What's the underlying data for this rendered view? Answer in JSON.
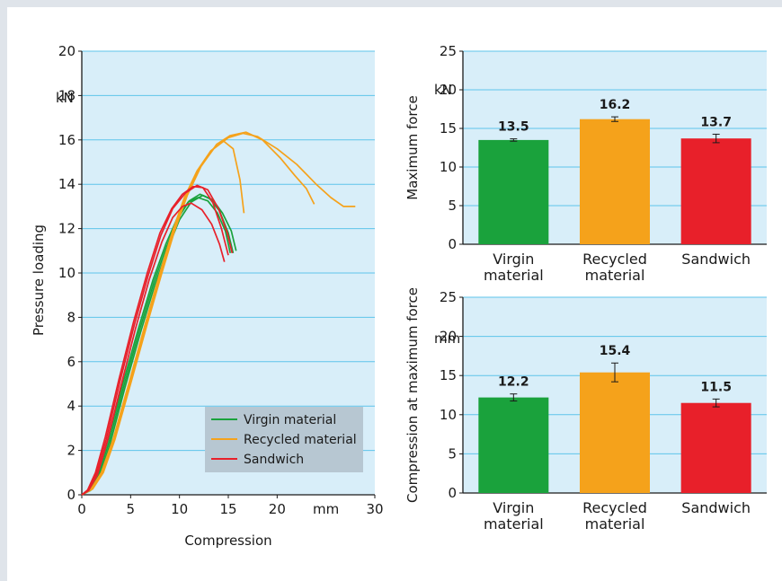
{
  "chart_data": [
    {
      "type": "line",
      "xlabel": "Compression",
      "ylabel": "Pressure loading",
      "xunit": "mm",
      "yunit": "kN",
      "xlim": [
        0,
        30
      ],
      "ylim": [
        0,
        20
      ],
      "xticks": [
        0,
        5,
        10,
        15,
        20,
        30
      ],
      "yticks": [
        0,
        2,
        4,
        6,
        8,
        10,
        12,
        14,
        16,
        18,
        20
      ],
      "grid": "horizontal",
      "legend": "bottom-right",
      "legend_entries": [
        {
          "name": "Virgin material",
          "color": "#1aa23c"
        },
        {
          "name": "Recycled material",
          "color": "#f5a21b"
        },
        {
          "name": "Sandwich",
          "color": "#e8202a"
        }
      ],
      "series": [
        {
          "group": "Virgin material",
          "color": "#1aa23c",
          "points": [
            [
              0,
              0
            ],
            [
              0.8,
              0.25
            ],
            [
              1.7,
              1.0
            ],
            [
              2.7,
              2.5
            ],
            [
              4.2,
              5.0
            ],
            [
              5.8,
              7.5
            ],
            [
              7.3,
              9.7
            ],
            [
              8.6,
              11.3
            ],
            [
              9.8,
              12.5
            ],
            [
              10.9,
              13.2
            ],
            [
              11.9,
              13.4
            ],
            [
              12.9,
              13.25
            ],
            [
              13.9,
              12.7
            ],
            [
              14.7,
              11.9
            ],
            [
              15.2,
              10.9
            ]
          ]
        },
        {
          "group": "Virgin material",
          "color": "#1aa23c",
          "points": [
            [
              0,
              0
            ],
            [
              0.8,
              0.22
            ],
            [
              1.8,
              0.95
            ],
            [
              2.8,
              2.4
            ],
            [
              4.3,
              4.9
            ],
            [
              5.9,
              7.4
            ],
            [
              7.4,
              9.6
            ],
            [
              8.7,
              11.2
            ],
            [
              9.9,
              12.5
            ],
            [
              11.0,
              13.25
            ],
            [
              12.1,
              13.55
            ],
            [
              13.1,
              13.35
            ],
            [
              14.1,
              12.8
            ],
            [
              15.0,
              11.8
            ],
            [
              15.5,
              10.9
            ]
          ]
        },
        {
          "group": "Virgin material",
          "color": "#1aa23c",
          "points": [
            [
              0,
              0
            ],
            [
              0.9,
              0.2
            ],
            [
              1.9,
              0.9
            ],
            [
              2.9,
              2.3
            ],
            [
              4.4,
              4.8
            ],
            [
              6.0,
              7.3
            ],
            [
              7.5,
              9.5
            ],
            [
              8.8,
              11.1
            ],
            [
              10.0,
              12.4
            ],
            [
              11.2,
              13.2
            ],
            [
              12.4,
              13.5
            ],
            [
              13.4,
              13.3
            ],
            [
              14.4,
              12.7
            ],
            [
              15.3,
              11.9
            ],
            [
              15.8,
              11.0
            ]
          ]
        },
        {
          "group": "Recycled material",
          "color": "#f5a21b",
          "points": [
            [
              0,
              0
            ],
            [
              1.0,
              0.3
            ],
            [
              2.0,
              1.0
            ],
            [
              3.2,
              2.5
            ],
            [
              4.8,
              5.0
            ],
            [
              6.5,
              7.7
            ],
            [
              8.0,
              10.0
            ],
            [
              9.3,
              11.9
            ],
            [
              10.5,
              13.4
            ],
            [
              11.8,
              14.6
            ],
            [
              13.2,
              15.5
            ],
            [
              14.5,
              15.95
            ],
            [
              15.5,
              15.6
            ],
            [
              16.2,
              14.2
            ],
            [
              16.6,
              12.7
            ]
          ]
        },
        {
          "group": "Recycled material",
          "color": "#f5a21b",
          "points": [
            [
              0,
              0
            ],
            [
              1.0,
              0.28
            ],
            [
              2.1,
              1.0
            ],
            [
              3.3,
              2.5
            ],
            [
              4.9,
              5.0
            ],
            [
              6.6,
              7.7
            ],
            [
              8.1,
              10.0
            ],
            [
              9.4,
              11.9
            ],
            [
              10.7,
              13.5
            ],
            [
              12.0,
              14.7
            ],
            [
              13.5,
              15.6
            ],
            [
              15.0,
              16.1
            ],
            [
              16.5,
              16.3
            ],
            [
              18.0,
              16.15
            ],
            [
              20.0,
              15.6
            ],
            [
              22.0,
              14.9
            ],
            [
              24.0,
              14.0
            ],
            [
              25.5,
              13.4
            ],
            [
              26.8,
              13.0
            ],
            [
              28.0,
              13.0
            ]
          ]
        },
        {
          "group": "Recycled material",
          "color": "#f5a21b",
          "points": [
            [
              0,
              0
            ],
            [
              1.1,
              0.26
            ],
            [
              2.2,
              1.0
            ],
            [
              3.4,
              2.5
            ],
            [
              5.0,
              5.0
            ],
            [
              6.7,
              7.7
            ],
            [
              8.2,
              10.0
            ],
            [
              9.5,
              11.9
            ],
            [
              10.8,
              13.5
            ],
            [
              12.2,
              14.8
            ],
            [
              13.8,
              15.8
            ],
            [
              15.2,
              16.2
            ],
            [
              16.8,
              16.35
            ],
            [
              18.5,
              16.0
            ],
            [
              20.3,
              15.2
            ],
            [
              21.8,
              14.4
            ],
            [
              23.0,
              13.8
            ],
            [
              23.8,
              13.1
            ]
          ]
        },
        {
          "group": "Sandwich",
          "color": "#e8202a",
          "points": [
            [
              0,
              0
            ],
            [
              0.6,
              0.22
            ],
            [
              1.4,
              1.0
            ],
            [
              2.4,
              2.6
            ],
            [
              3.8,
              5.2
            ],
            [
              5.3,
              7.8
            ],
            [
              6.7,
              10.0
            ],
            [
              8.0,
              11.8
            ],
            [
              9.2,
              12.9
            ],
            [
              10.3,
              13.55
            ],
            [
              11.4,
              13.9
            ],
            [
              12.4,
              13.85
            ],
            [
              13.4,
              13.2
            ],
            [
              14.3,
              12.0
            ],
            [
              15.0,
              10.8
            ]
          ]
        },
        {
          "group": "Sandwich",
          "color": "#e8202a",
          "points": [
            [
              0,
              0
            ],
            [
              0.7,
              0.2
            ],
            [
              1.5,
              0.95
            ],
            [
              2.5,
              2.5
            ],
            [
              3.9,
              5.1
            ],
            [
              5.4,
              7.7
            ],
            [
              6.8,
              9.9
            ],
            [
              8.1,
              11.7
            ],
            [
              9.3,
              12.9
            ],
            [
              10.6,
              13.6
            ],
            [
              11.8,
              13.95
            ],
            [
              12.9,
              13.75
            ],
            [
              14.0,
              12.9
            ],
            [
              14.9,
              11.8
            ],
            [
              15.4,
              10.9
            ]
          ]
        },
        {
          "group": "Sandwich",
          "color": "#e8202a",
          "points": [
            [
              0,
              0
            ],
            [
              0.7,
              0.2
            ],
            [
              1.6,
              0.9
            ],
            [
              2.6,
              2.4
            ],
            [
              4.0,
              4.9
            ],
            [
              5.5,
              7.5
            ],
            [
              6.9,
              9.7
            ],
            [
              8.2,
              11.4
            ],
            [
              9.3,
              12.5
            ],
            [
              10.3,
              13.0
            ],
            [
              11.2,
              13.15
            ],
            [
              12.3,
              12.85
            ],
            [
              13.3,
              12.2
            ],
            [
              14.1,
              11.3
            ],
            [
              14.6,
              10.5
            ]
          ]
        }
      ]
    },
    {
      "type": "bar",
      "ylabel": "Maximum force",
      "yunit": "kN",
      "ylim": [
        0,
        25
      ],
      "yticks": [
        0,
        5,
        10,
        15,
        20,
        25
      ],
      "grid": "horizontal",
      "categories": [
        [
          "Virgin",
          "material"
        ],
        [
          "Recycled",
          "material"
        ],
        [
          "Sandwich"
        ]
      ],
      "values": [
        13.5,
        16.2,
        13.7
      ],
      "value_labels": [
        "13.5",
        "16.2",
        "13.7"
      ],
      "errors": [
        0.15,
        0.3,
        0.55
      ],
      "colors": [
        "#1aa23c",
        "#f5a21b",
        "#e8202a"
      ]
    },
    {
      "type": "bar",
      "ylabel": "Compression at maximum force",
      "yunit": "mm",
      "ylim": [
        0,
        25
      ],
      "yticks": [
        0,
        5,
        10,
        15,
        20,
        25
      ],
      "grid": "horizontal",
      "categories": [
        [
          "Virgin",
          "material"
        ],
        [
          "Recycled",
          "material"
        ],
        [
          "Sandwich"
        ]
      ],
      "values": [
        12.2,
        15.4,
        11.5
      ],
      "value_labels": [
        "12.2",
        "15.4",
        "11.5"
      ],
      "errors": [
        0.45,
        1.2,
        0.5
      ],
      "colors": [
        "#1aa23c",
        "#f5a21b",
        "#e8202a"
      ]
    }
  ]
}
